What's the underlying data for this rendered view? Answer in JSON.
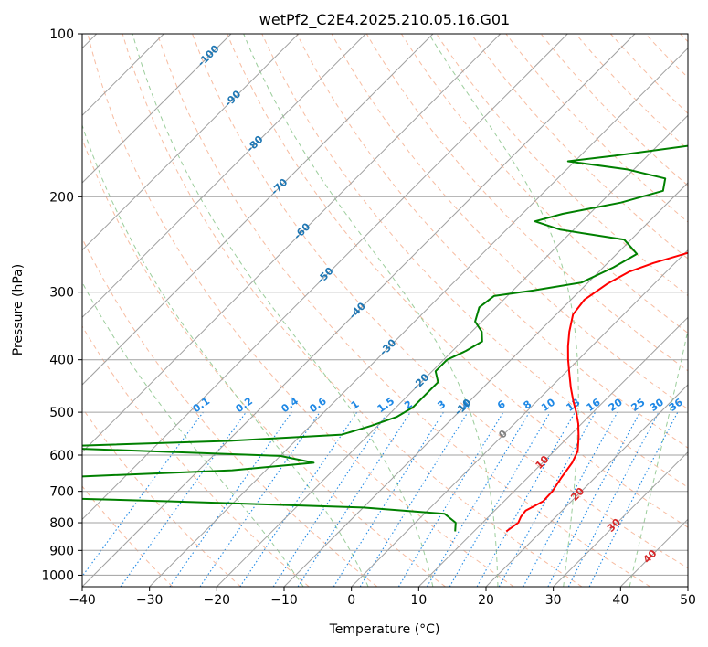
{
  "chart_data": {
    "type": "line",
    "title": "wetPf2_C2E4.2025.210.05.16.G01",
    "xlabel": "Temperature (°C)",
    "ylabel": "Pressure (hPa)",
    "xlim": [
      -40,
      50
    ],
    "ylim": [
      1050,
      100
    ],
    "y_scale": "log",
    "skew": "skew-T",
    "x_ticks": [
      -40,
      -30,
      -20,
      -10,
      0,
      10,
      20,
      30,
      40,
      50
    ],
    "y_ticks": [
      100,
      200,
      300,
      400,
      500,
      600,
      700,
      800,
      900,
      1000
    ],
    "grid": true,
    "colors": {
      "temperature": "#ff0000",
      "dewpoint": "#008000",
      "isotherm": "#a0a0a0",
      "dry_adiabat": "#f4a582",
      "moist_adiabat": "#90c890",
      "mixing_ratio": "#1e88e5",
      "isotherm_label": "#1f77b4",
      "moist_label": "#d62728"
    },
    "dry_adiabat_thetas": [
      -30,
      -20,
      -10,
      0,
      10,
      20,
      30,
      40,
      50,
      60,
      70,
      80,
      90,
      100,
      110,
      120,
      130,
      140,
      150,
      160,
      170,
      180,
      190,
      200,
      210,
      220
    ],
    "moist_adiabat_t0": [
      -10,
      0,
      10,
      20,
      30,
      40
    ],
    "isotherm_labels": [
      {
        "text": "-100",
        "t": -100,
        "p": 110
      },
      {
        "text": "-90",
        "t": -90,
        "p": 132
      },
      {
        "text": "-80",
        "t": -80,
        "p": 160
      },
      {
        "text": "-70",
        "t": -70,
        "p": 192
      },
      {
        "text": "-60",
        "t": -60,
        "p": 232
      },
      {
        "text": "-50",
        "t": -50,
        "p": 280
      },
      {
        "text": "-40",
        "t": -40,
        "p": 325
      },
      {
        "text": "-30",
        "t": -30,
        "p": 380
      },
      {
        "text": "-20",
        "t": -20,
        "p": 440
      },
      {
        "text": "-10",
        "t": -10,
        "p": 490
      },
      {
        "text": "0",
        "t": 0,
        "p": 550
      }
    ],
    "moist_labels": [
      {
        "text": "10",
        "t": 10,
        "p": 620
      },
      {
        "text": "20",
        "t": 20,
        "p": 710
      },
      {
        "text": "30",
        "t": 30,
        "p": 810
      },
      {
        "text": "40",
        "t": 40,
        "p": 925
      }
    ],
    "mixing_ratio_values": [
      0.1,
      0.2,
      0.4,
      0.6,
      1,
      1.5,
      2,
      3,
      4,
      6,
      8,
      10,
      13,
      16,
      20,
      25,
      30,
      36
    ],
    "mixing_ratio_labels": [
      "0.1",
      "0.2",
      "0.4",
      "0.6",
      "1",
      "1.5",
      "2",
      "3",
      "4",
      "6",
      "8",
      "10",
      "13",
      "16",
      "20",
      "25",
      "30",
      "36"
    ],
    "series": [
      {
        "name": "Temperature",
        "points": [
          [
            14.8,
            830
          ],
          [
            15.3,
            800
          ],
          [
            14.8,
            780
          ],
          [
            14.6,
            760
          ],
          [
            15.2,
            745
          ],
          [
            15.8,
            730
          ],
          [
            15.7,
            700
          ],
          [
            15.0,
            660
          ],
          [
            14.4,
            620
          ],
          [
            13.5,
            590
          ],
          [
            11.5,
            555
          ],
          [
            9.5,
            525
          ],
          [
            7.5,
            500
          ],
          [
            5.5,
            478
          ],
          [
            3.0,
            450
          ],
          [
            0.8,
            425
          ],
          [
            -1.5,
            400
          ],
          [
            -3.5,
            378
          ],
          [
            -5.5,
            355
          ],
          [
            -7.5,
            330
          ],
          [
            -8.0,
            310
          ],
          [
            -7.0,
            290
          ],
          [
            -5.5,
            275
          ],
          [
            -3.2,
            265
          ],
          [
            0.0,
            255
          ],
          [
            5.0,
            240
          ],
          [
            9.0,
            230
          ],
          [
            11.5,
            222
          ],
          [
            12.5,
            210
          ],
          [
            12.3,
            195
          ],
          [
            12.2,
            180
          ],
          [
            11.5,
            165
          ],
          [
            9.0,
            150
          ],
          [
            7.5,
            140
          ],
          [
            7.0,
            130
          ],
          [
            6.5,
            120
          ],
          [
            4.8,
            110
          ],
          [
            3.0,
            100
          ]
        ]
      },
      {
        "name": "Dewpoint",
        "points": [
          [
            7.2,
            830
          ],
          [
            6.0,
            800
          ],
          [
            3.0,
            770
          ],
          [
            -10.0,
            750
          ],
          [
            -40.0,
            730
          ],
          [
            -75.0,
            710
          ],
          [
            -85.0,
            690
          ],
          [
            -60.0,
            660
          ],
          [
            -35.0,
            640
          ],
          [
            -24.0,
            620
          ],
          [
            -30.0,
            602
          ],
          [
            -50.0,
            590
          ],
          [
            -68.0,
            580
          ],
          [
            -40.0,
            565
          ],
          [
            -24.0,
            550
          ],
          [
            -21.0,
            530
          ],
          [
            -18.5,
            510
          ],
          [
            -17.5,
            490
          ],
          [
            -17.5,
            460
          ],
          [
            -17.5,
            440
          ],
          [
            -19.5,
            420
          ],
          [
            -19.5,
            400
          ],
          [
            -18.0,
            385
          ],
          [
            -17.0,
            370
          ],
          [
            -18.5,
            355
          ],
          [
            -21.0,
            340
          ],
          [
            -22.5,
            320
          ],
          [
            -22.0,
            305
          ],
          [
            -17.0,
            298
          ],
          [
            -11.0,
            288
          ],
          [
            -8.5,
            270
          ],
          [
            -7.0,
            255
          ],
          [
            -11.0,
            240
          ],
          [
            -22.0,
            230
          ],
          [
            -27.0,
            222
          ],
          [
            -24.0,
            215
          ],
          [
            -17.0,
            205
          ],
          [
            -12.5,
            195
          ],
          [
            -14.0,
            185
          ],
          [
            -21.0,
            178
          ],
          [
            -31.0,
            172
          ],
          [
            -25.0,
            168
          ],
          [
            -14.0,
            160
          ],
          [
            -9.0,
            152
          ],
          [
            -11.0,
            146
          ],
          [
            -10.5,
            140
          ],
          [
            -7.5,
            130
          ],
          [
            -4.0,
            120
          ],
          [
            1.0,
            110
          ],
          [
            5.0,
            100
          ]
        ]
      }
    ]
  }
}
